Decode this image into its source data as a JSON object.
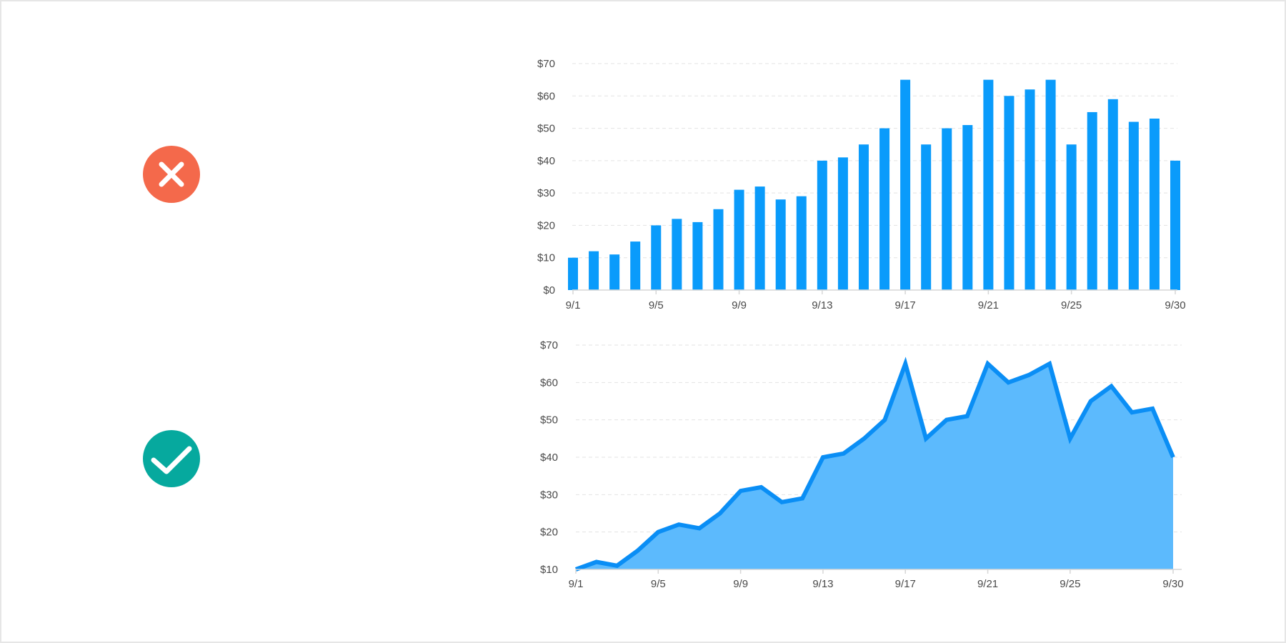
{
  "colors": {
    "bad_badge": "#F4694B",
    "good_badge": "#06A99E",
    "bar": "#0A9BFB",
    "area_fill": "#5CBAFD",
    "area_line": "#0A8EF5",
    "grid": "#E3E3E3",
    "axis": "#D6D6D6",
    "tick_text": "#4A4A4A"
  },
  "icons": {
    "bad": "close-icon",
    "good": "check-icon"
  },
  "chart_data": [
    {
      "type": "bar",
      "role": "incorrect-example",
      "title": "",
      "xlabel": "",
      "ylabel": "",
      "x": [
        "9/1",
        "9/2",
        "9/3",
        "9/4",
        "9/5",
        "9/6",
        "9/7",
        "9/8",
        "9/9",
        "9/10",
        "9/11",
        "9/12",
        "9/13",
        "9/14",
        "9/15",
        "9/16",
        "9/17",
        "9/18",
        "9/19",
        "9/20",
        "9/21",
        "9/22",
        "9/23",
        "9/24",
        "9/25",
        "9/26",
        "9/27",
        "9/28",
        "9/29",
        "9/30"
      ],
      "values": [
        10,
        12,
        11,
        15,
        20,
        22,
        21,
        25,
        31,
        32,
        28,
        29,
        40,
        41,
        45,
        50,
        65,
        45,
        50,
        51,
        65,
        60,
        62,
        65,
        45,
        55,
        59,
        52,
        53,
        40
      ],
      "ylim": [
        0,
        70
      ],
      "yticks": [
        0,
        10,
        20,
        30,
        40,
        50,
        60,
        70
      ],
      "ytick_labels": [
        "$0",
        "$10",
        "$20",
        "$30",
        "$40",
        "$50",
        "$60",
        "$70"
      ],
      "xtick_labels": [
        "9/1",
        "9/5",
        "9/9",
        "9/13",
        "9/17",
        "9/21",
        "9/25",
        "9/30"
      ],
      "grid": true
    },
    {
      "type": "area",
      "role": "correct-example",
      "title": "",
      "xlabel": "",
      "ylabel": "",
      "x": [
        "9/1",
        "9/2",
        "9/3",
        "9/4",
        "9/5",
        "9/6",
        "9/7",
        "9/8",
        "9/9",
        "9/10",
        "9/11",
        "9/12",
        "9/13",
        "9/14",
        "9/15",
        "9/16",
        "9/17",
        "9/18",
        "9/19",
        "9/20",
        "9/21",
        "9/22",
        "9/23",
        "9/24",
        "9/25",
        "9/26",
        "9/27",
        "9/28",
        "9/29",
        "9/30"
      ],
      "values": [
        10,
        12,
        11,
        15,
        20,
        22,
        21,
        25,
        31,
        32,
        28,
        29,
        40,
        41,
        45,
        50,
        65,
        45,
        50,
        51,
        65,
        60,
        62,
        65,
        45,
        55,
        59,
        52,
        53,
        40
      ],
      "ylim": [
        10,
        70
      ],
      "yticks": [
        10,
        20,
        30,
        40,
        50,
        60,
        70
      ],
      "ytick_labels": [
        "$10",
        "$20",
        "$30",
        "$40",
        "$50",
        "$60",
        "$70"
      ],
      "xtick_labels": [
        "9/1",
        "9/5",
        "9/9",
        "9/13",
        "9/17",
        "9/21",
        "9/25",
        "9/30"
      ],
      "grid": true
    }
  ]
}
